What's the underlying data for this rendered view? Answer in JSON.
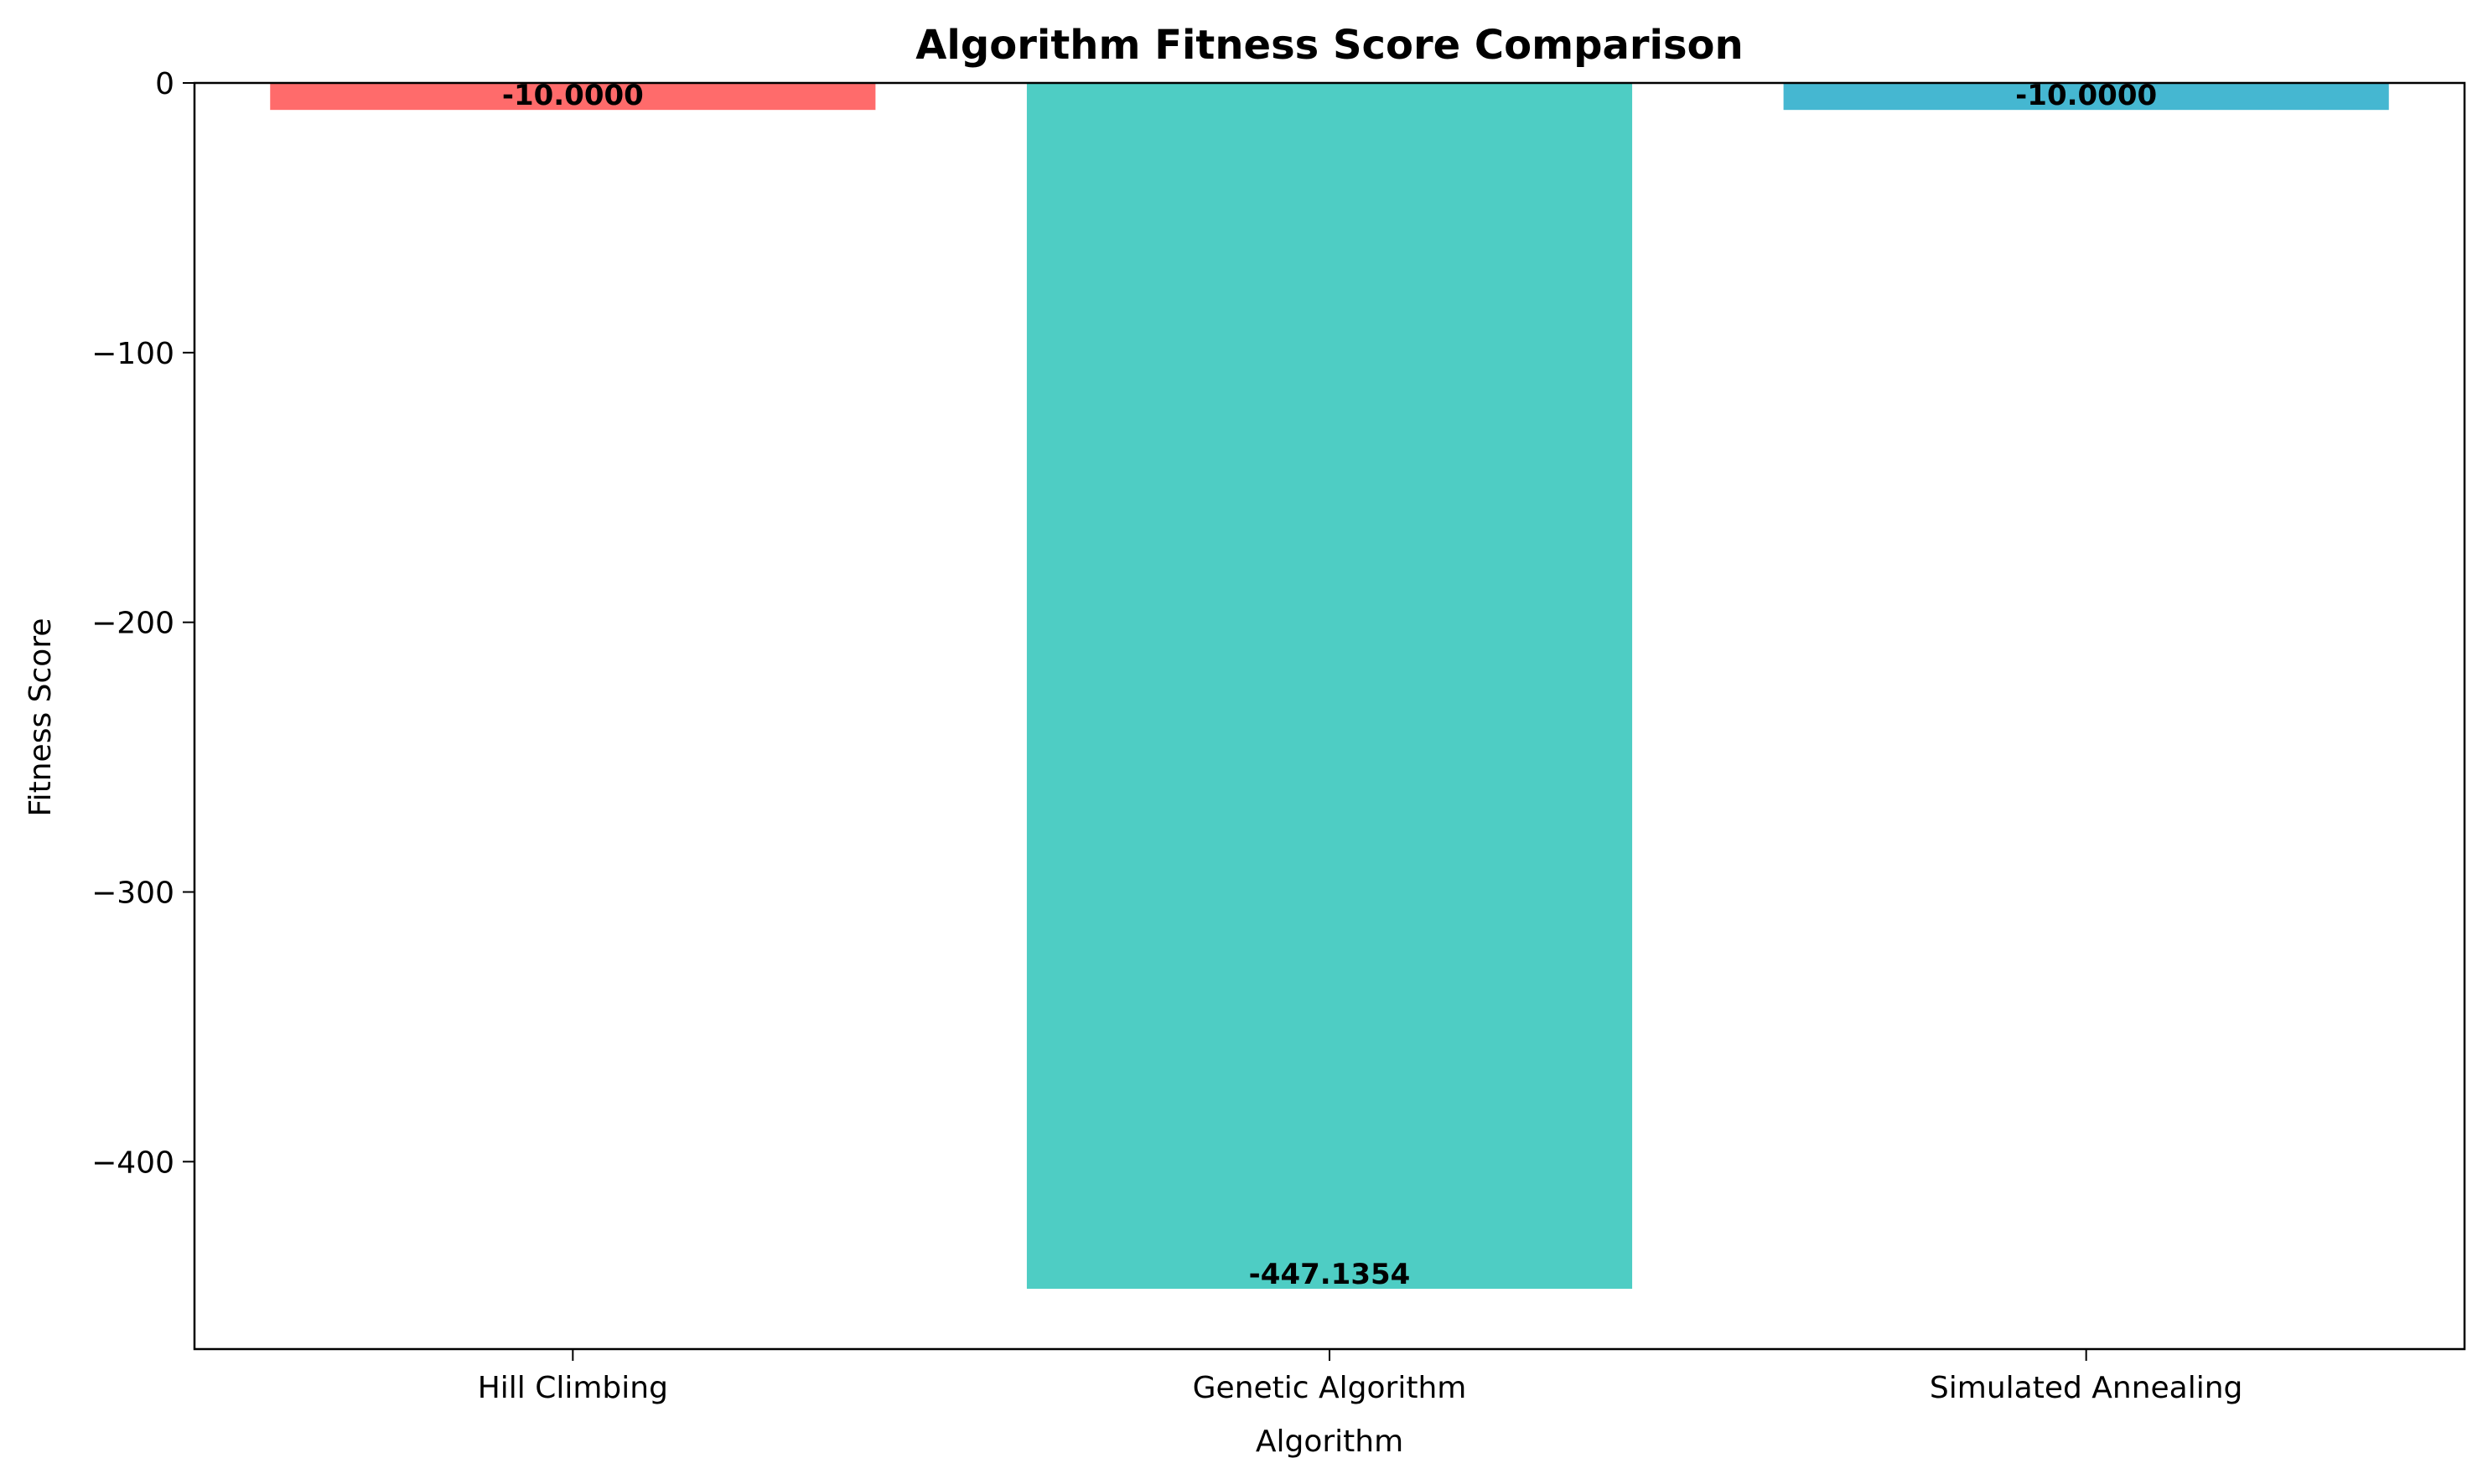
{
  "chart_data": {
    "type": "bar",
    "title": "Algorithm Fitness Score Comparison",
    "xlabel": "Algorithm",
    "ylabel": "Fitness Score",
    "categories": [
      "Hill Climbing",
      "Genetic Algorithm",
      "Simulated Annealing"
    ],
    "values": [
      -10.0,
      -447.1354,
      -10.0
    ],
    "data_labels": [
      "-10.0000",
      "-447.1354",
      "-10.0000"
    ],
    "colors": [
      "#ff6b6b",
      "#4ecdc4",
      "#45b7d1"
    ],
    "ylim": [
      -469.5,
      0
    ],
    "yticks": [
      0,
      -100,
      -200,
      -300,
      -400
    ],
    "ytick_labels": [
      "0",
      "−100",
      "−200",
      "−300",
      "−400"
    ],
    "grid": false,
    "legend": "none"
  }
}
